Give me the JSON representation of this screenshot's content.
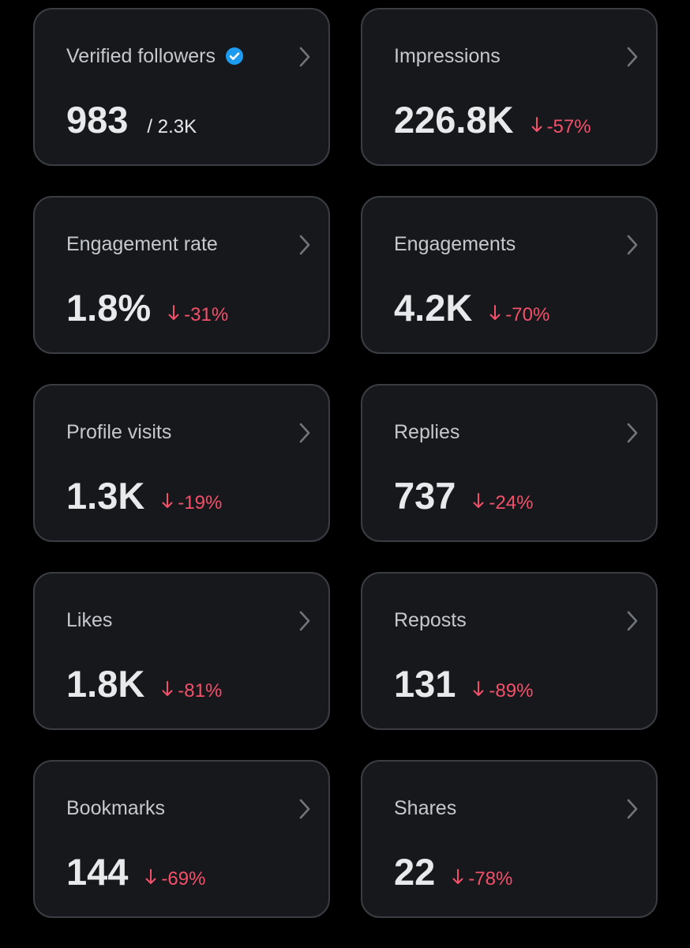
{
  "cards": [
    {
      "label": "Verified followers",
      "value": "983",
      "total": "/ 2.3K",
      "verified": true
    },
    {
      "label": "Impressions",
      "value": "226.8K",
      "change": "-57%"
    },
    {
      "label": "Engagement rate",
      "value": "1.8%",
      "change": "-31%"
    },
    {
      "label": "Engagements",
      "value": "4.2K",
      "change": "-70%"
    },
    {
      "label": "Profile visits",
      "value": "1.3K",
      "change": "-19%"
    },
    {
      "label": "Replies",
      "value": "737",
      "change": "-24%"
    },
    {
      "label": "Likes",
      "value": "1.8K",
      "change": "-81%"
    },
    {
      "label": "Reposts",
      "value": "131",
      "change": "-89%"
    },
    {
      "label": "Bookmarks",
      "value": "144",
      "change": "-69%"
    },
    {
      "label": "Shares",
      "value": "22",
      "change": "-78%"
    }
  ]
}
